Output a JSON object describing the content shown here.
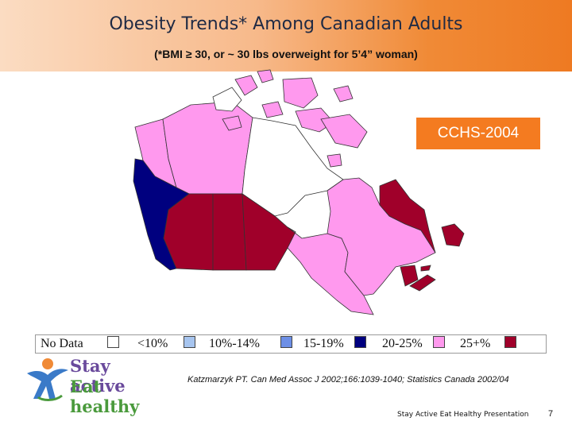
{
  "slide": {
    "title": "Obesity Trends* Among Canadian Adults",
    "subtitle": "(*BMI ≥ 30, or ~ 30 lbs overweight for 5’4” woman)",
    "survey_label": "CCHS-2004",
    "citation": "Katzmarzyk PT. Can Med Assoc J 2002;166:1039-1040; Statistics Canada 2002/04",
    "footer": "Stay Active Eat Healthy Presentation",
    "page_number": "7"
  },
  "logo": {
    "line1": "Stay active",
    "line2": "Eat healthy"
  },
  "legend": {
    "items": [
      {
        "label": "No Data",
        "color": "#ffffff"
      },
      {
        "label": "<10%",
        "color": "#a7c5ef"
      },
      {
        "label": "10%-14%",
        "color": "#6d8fe6"
      },
      {
        "label": "15-19%",
        "color": "#00007f"
      },
      {
        "label": "20-25%",
        "color": "#ff99ee"
      },
      {
        "label": "25+%",
        "color": "#a0002a"
      }
    ]
  },
  "map": {
    "regions": [
      {
        "name": "British Columbia",
        "category": "15-19%"
      },
      {
        "name": "Alberta",
        "category": "25+%"
      },
      {
        "name": "Saskatchewan",
        "category": "25+%"
      },
      {
        "name": "Manitoba",
        "category": "25+%"
      },
      {
        "name": "Ontario",
        "category": "20-25%"
      },
      {
        "name": "Quebec",
        "category": "20-25%"
      },
      {
        "name": "Newfoundland and Labrador",
        "category": "25+%"
      },
      {
        "name": "New Brunswick",
        "category": "25+%"
      },
      {
        "name": "Nova Scotia",
        "category": "25+%"
      },
      {
        "name": "Prince Edward Island",
        "category": "25+%"
      },
      {
        "name": "Yukon",
        "category": "20-25%"
      },
      {
        "name": "Northwest Territories",
        "category": "20-25%"
      },
      {
        "name": "Nunavut",
        "category": "No Data"
      }
    ]
  }
}
